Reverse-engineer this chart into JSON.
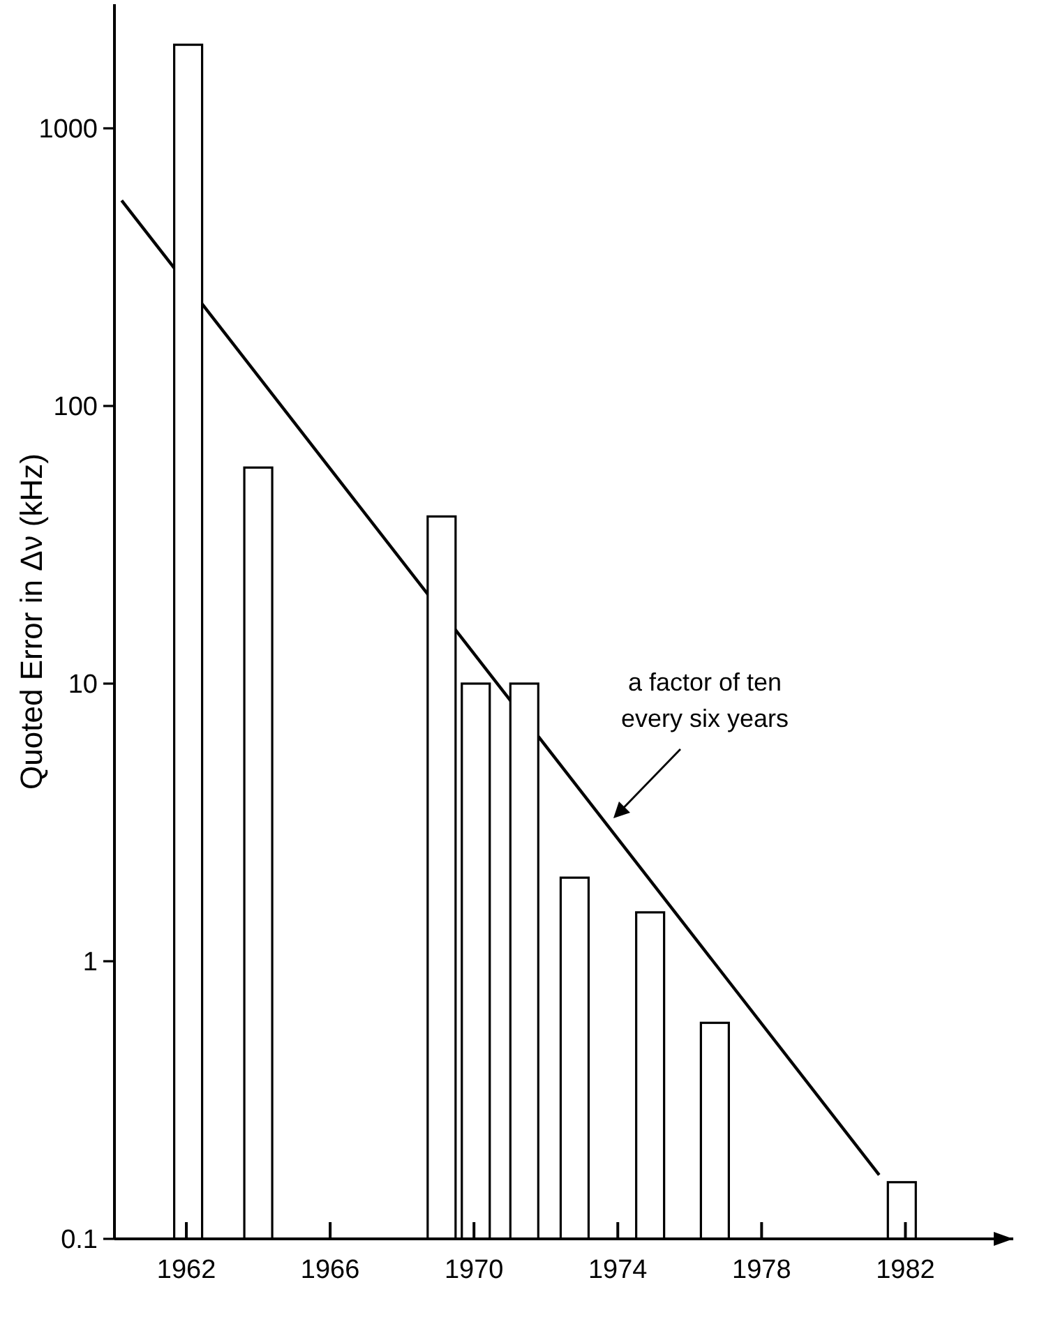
{
  "chart_data": {
    "type": "bar",
    "ylabel": "Quoted Error in Δν (kHz)",
    "log": "y",
    "grid": false,
    "xlim": [
      1960,
      1985
    ],
    "xticks": [
      1962,
      1966,
      1970,
      1974,
      1978,
      1982
    ],
    "ylim": [
      0.1,
      2800
    ],
    "yticks": [
      {
        "value": 0.1,
        "label": "0.1"
      },
      1,
      10,
      100,
      1000
    ],
    "series": [
      {
        "color": "#ffffff",
        "x": [
          1962.05,
          1964,
          1969.1,
          1970.05,
          1971.4,
          1972.8,
          1974.9,
          1976.7,
          1981.9
        ],
        "values": [
          2000,
          60,
          40,
          10,
          10,
          2,
          1.5,
          0.6,
          0.16
        ]
      },
      {
        "type": "line",
        "color": "#000000",
        "x": [
          1960.2,
          1981.27
        ],
        "values": [
          550,
          0.17
        ]
      }
    ],
    "annotations": [
      {
        "text": "a factor of ten\nevery six years",
        "x": 1973.8,
        "y": 3.2
      }
    ]
  }
}
